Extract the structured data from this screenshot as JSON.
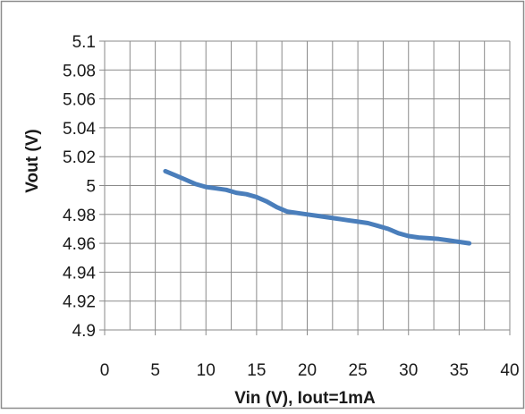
{
  "chart_data": {
    "type": "line",
    "title": "",
    "xlabel": "Vin (V), Iout=1mA",
    "ylabel": "Vout (V)",
    "xlim": [
      0,
      40
    ],
    "ylim": [
      4.9,
      5.1
    ],
    "x_ticks": [
      "0",
      "5",
      "10",
      "15",
      "20",
      "25",
      "30",
      "35",
      "40"
    ],
    "y_ticks": [
      "5.1",
      "5.08",
      "5.06",
      "5.04",
      "5.02",
      "5",
      "4.98",
      "4.96",
      "4.94",
      "4.92",
      "4.9"
    ],
    "grid": true,
    "legend": "none",
    "series": [
      {
        "color": "#4a7ebb",
        "x": [
          6,
          7,
          8,
          9,
          10,
          11,
          12,
          13,
          14,
          15,
          16,
          17,
          18,
          19,
          20,
          21,
          22,
          23,
          24,
          25,
          26,
          27,
          28,
          29,
          30,
          31,
          32,
          33,
          34,
          35,
          36
        ],
        "y": [
          5.01,
          5.007,
          5.004,
          5.001,
          4.999,
          4.998,
          4.997,
          4.995,
          4.994,
          4.992,
          4.989,
          4.985,
          4.982,
          4.981,
          4.98,
          4.979,
          4.978,
          4.977,
          4.976,
          4.975,
          4.974,
          4.972,
          4.97,
          4.967,
          4.965,
          4.964,
          4.9635,
          4.963,
          4.962,
          4.961,
          4.96
        ]
      }
    ]
  }
}
